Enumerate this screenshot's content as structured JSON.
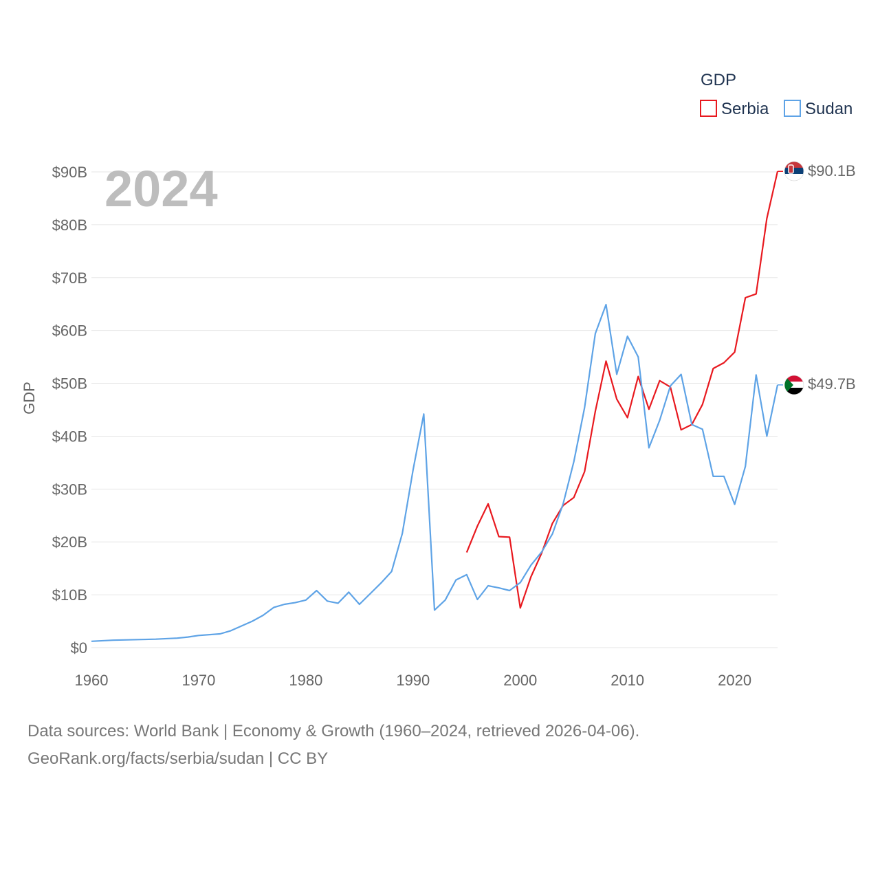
{
  "chart_data": {
    "type": "line",
    "title": "GDP",
    "year_label": "2024",
    "xlabel": "",
    "ylabel": "GDP",
    "xlim": [
      1960,
      2024
    ],
    "ylim": [
      0,
      90
    ],
    "x_ticks": [
      {
        "value": 1960,
        "label": "1960"
      },
      {
        "value": 1970,
        "label": "1970"
      },
      {
        "value": 1980,
        "label": "1980"
      },
      {
        "value": 1990,
        "label": "1990"
      },
      {
        "value": 2000,
        "label": "2000"
      },
      {
        "value": 2010,
        "label": "2010"
      },
      {
        "value": 2020,
        "label": "2020"
      }
    ],
    "y_ticks": [
      {
        "value": 0,
        "label": "$0"
      },
      {
        "value": 10,
        "label": "$10B"
      },
      {
        "value": 20,
        "label": "$20B"
      },
      {
        "value": 30,
        "label": "$30B"
      },
      {
        "value": 40,
        "label": "$40B"
      },
      {
        "value": 50,
        "label": "$50B"
      },
      {
        "value": 60,
        "label": "$60B"
      },
      {
        "value": 70,
        "label": "$70B"
      },
      {
        "value": 80,
        "label": "$80B"
      },
      {
        "value": 90,
        "label": "$90B"
      }
    ],
    "legend": {
      "title": "GDP",
      "placement": "top-right"
    },
    "series": [
      {
        "name": "Serbia",
        "color": "#e8191f",
        "end_label": "$90.1B",
        "flag_icon": "serbia-flag-icon",
        "x": [
          1995,
          1996,
          1997,
          1998,
          1999,
          2000,
          2001,
          2002,
          2003,
          2004,
          2005,
          2006,
          2007,
          2008,
          2009,
          2010,
          2011,
          2012,
          2013,
          2014,
          2015,
          2016,
          2017,
          2018,
          2019,
          2020,
          2021,
          2022,
          2023,
          2024
        ],
        "values": [
          18.0,
          23.0,
          27.2,
          21.0,
          20.9,
          7.5,
          13.4,
          17.9,
          23.5,
          26.9,
          28.4,
          33.3,
          44.7,
          54.2,
          47.0,
          43.5,
          51.3,
          45.1,
          50.5,
          49.3,
          41.2,
          42.2,
          46.0,
          52.8,
          53.9,
          55.9,
          66.2,
          66.9,
          81.2,
          90.1
        ]
      },
      {
        "name": "Sudan",
        "color": "#5ea3e6",
        "end_label": "$49.7B",
        "flag_icon": "sudan-flag-icon",
        "x": [
          1960,
          1962,
          1966,
          1968,
          1969,
          1970,
          1972,
          1973,
          1975,
          1976,
          1977,
          1978,
          1979,
          1980,
          1981,
          1982,
          1983,
          1984,
          1985,
          1986,
          1987,
          1988,
          1989,
          1990,
          1991,
          1992,
          1993,
          1994,
          1995,
          1996,
          1997,
          1998,
          1999,
          2000,
          2001,
          2002,
          2003,
          2004,
          2005,
          2006,
          2007,
          2008,
          2009,
          2010,
          2011,
          2012,
          2013,
          2014,
          2015,
          2016,
          2017,
          2018,
          2019,
          2020,
          2021,
          2022,
          2023,
          2024
        ],
        "values": [
          1.2,
          1.4,
          1.6,
          1.8,
          2.0,
          2.3,
          2.6,
          3.2,
          5.0,
          6.1,
          7.6,
          8.2,
          8.5,
          9.0,
          10.8,
          8.8,
          8.4,
          10.5,
          8.2,
          10.2,
          12.2,
          14.4,
          21.6,
          33.6,
          44.2,
          7.1,
          9.0,
          12.8,
          13.8,
          9.1,
          11.7,
          11.3,
          10.8,
          12.3,
          15.6,
          18.1,
          21.5,
          27.2,
          35.2,
          45.4,
          59.4,
          64.9,
          51.7,
          58.9,
          55.0,
          37.8,
          43.0,
          49.5,
          51.7,
          42.2,
          41.3,
          32.4,
          32.4,
          27.1,
          34.3,
          51.6,
          40.0,
          49.7
        ]
      }
    ]
  },
  "footer": {
    "line1": "Data sources: World Bank | Economy & Growth (1960–2024, retrieved 2026-04-06).",
    "line2": "GeoRank.org/facts/serbia/sudan | CC BY"
  }
}
